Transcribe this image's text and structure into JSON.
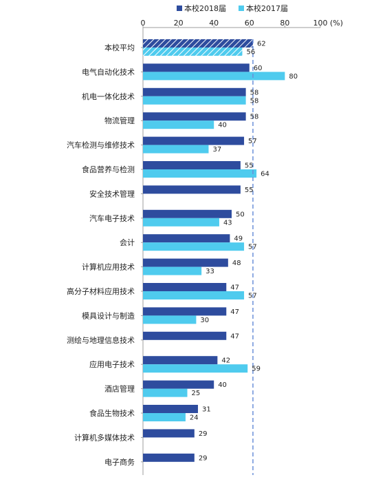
{
  "chart_data": {
    "type": "bar",
    "orientation": "horizontal",
    "unit_label": "(%)",
    "xlim": [
      0,
      100
    ],
    "x_ticks": [
      "0",
      "20",
      "40",
      "60",
      "80",
      "100"
    ],
    "reference_line": {
      "series": "本校2018届",
      "category": "本校平均",
      "value": 62,
      "style": "dashed"
    },
    "legend_position": "top",
    "categories": [
      "本校平均",
      "电气自动化技术",
      "机电一体化技术",
      "物流管理",
      "汽车检测与维修技术",
      "食品营养与检测",
      "安全技术管理",
      "汽车电子技术",
      "会计",
      "计算机应用技术",
      "高分子材料应用技术",
      "模具设计与制造",
      "测绘与地理信息技术",
      "应用电子技术",
      "酒店管理",
      "食品生物技术",
      "计算机多媒体技术",
      "电子商务"
    ],
    "series": [
      {
        "name": "本校2018届",
        "color": "#2E4C9E",
        "values": [
          62,
          60,
          58,
          58,
          57,
          55,
          55,
          50,
          49,
          48,
          47,
          47,
          47,
          42,
          40,
          31,
          29,
          29
        ]
      },
      {
        "name": "本校2017届",
        "color": "#4FCBEE",
        "values": [
          56,
          80,
          58,
          40,
          37,
          64,
          null,
          43,
          57,
          33,
          57,
          30,
          null,
          59,
          25,
          24,
          null,
          null
        ]
      }
    ],
    "highlight_categories": [
      "本校平均"
    ],
    "highlight_pattern": "diagonal-hatch"
  }
}
